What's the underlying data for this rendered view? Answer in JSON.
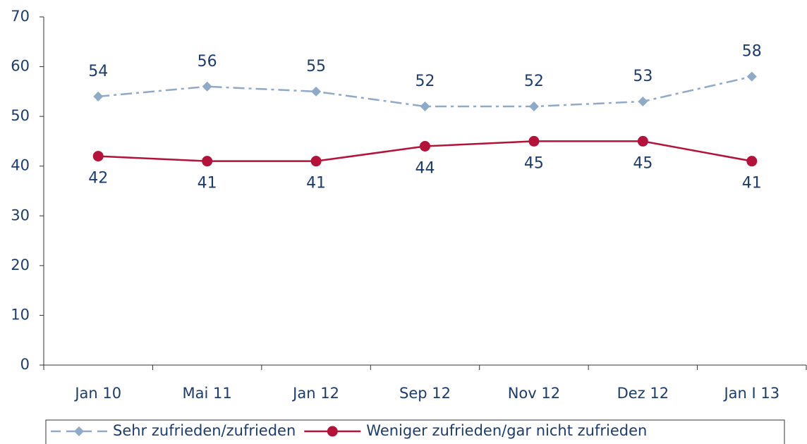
{
  "chart_data": {
    "type": "line",
    "categories": [
      "Jan 10",
      "Mai 11",
      "Jan 12",
      "Sep 12",
      "Nov 12",
      "Dez 12",
      "Jan I 13"
    ],
    "series": [
      {
        "name": "Sehr zufrieden/zufrieden",
        "color": "#8fa9c8",
        "values": [
          54,
          56,
          55,
          52,
          52,
          53,
          58
        ]
      },
      {
        "name": "Weniger zufrieden/gar nicht zufrieden",
        "color": "#b5123a",
        "values": [
          42,
          41,
          41,
          44,
          45,
          45,
          41
        ]
      }
    ],
    "ylim": [
      0,
      70
    ],
    "yticks": [
      0,
      10,
      20,
      30,
      40,
      50,
      60,
      70
    ],
    "grid": false,
    "legend": "bottom"
  }
}
